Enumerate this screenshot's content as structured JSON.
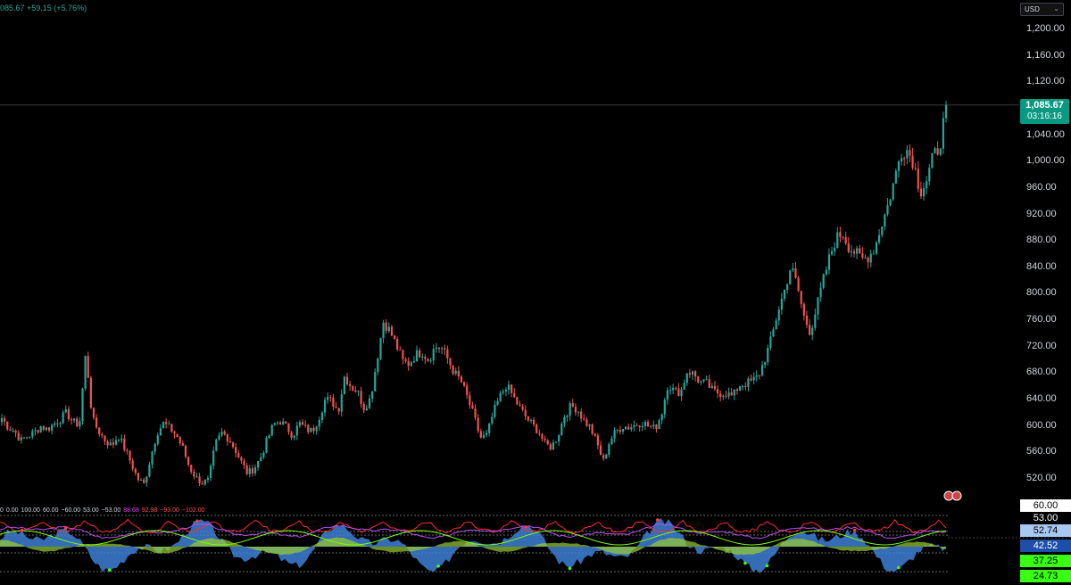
{
  "header": {
    "change_text": "085.67  +59.15 (+5.76%)",
    "currency": "USD"
  },
  "price_axis": {
    "ticks": [
      "1,200.00",
      "1,160.00",
      "1,120.00",
      "1,040.00",
      "1,000.00",
      "960.00",
      "920.00",
      "880.00",
      "840.00",
      "800.00",
      "760.00",
      "720.00",
      "680.00",
      "640.00",
      "600.00",
      "560.00",
      "520.00"
    ],
    "current_price": "1,085.67",
    "countdown": "03:16:16"
  },
  "indicator": {
    "values": [
      "0",
      "0.00",
      "100.00",
      "60.00",
      "−60.00",
      "53.00",
      "−53.00",
      "88.68",
      "92.98",
      "−93.00",
      "−102.00"
    ],
    "axis_badges": [
      "60.00",
      "53.00",
      "52.74",
      "42.52",
      "37.25",
      "24.73"
    ]
  },
  "colors": {
    "up": "#26a69a",
    "down": "#ef5350",
    "price_badge": "#089981",
    "background": "#000000"
  },
  "chart_data": {
    "type": "candlestick",
    "ylim": [
      500,
      1220
    ],
    "last_close": 1085.67,
    "close_path": [
      612,
      598,
      592,
      578,
      585,
      590,
      600,
      595,
      603,
      610,
      620,
      606,
      602,
      712,
      610,
      592,
      578,
      570,
      586,
      566,
      544,
      520,
      512,
      552,
      590,
      604,
      596,
      586,
      566,
      538,
      522,
      514,
      518,
      572,
      590,
      582,
      566,
      546,
      528,
      536,
      552,
      578,
      602,
      608,
      598,
      586,
      604,
      596,
      592,
      612,
      640,
      638,
      622,
      676,
      660,
      652,
      628,
      642,
      700,
      758,
      744,
      722,
      698,
      694,
      708,
      712,
      700,
      720,
      718,
      700,
      680,
      668,
      642,
      614,
      582,
      586,
      620,
      644,
      662,
      646,
      628,
      614,
      602,
      592,
      572,
      568,
      586,
      616,
      630,
      626,
      608,
      598,
      574,
      546,
      578,
      592,
      600,
      598,
      602,
      606,
      600,
      596,
      618,
      664,
      652,
      652,
      684,
      678,
      666,
      664,
      652,
      650,
      650,
      644,
      662,
      664,
      668,
      676,
      702,
      732,
      774,
      804,
      842,
      812,
      766,
      742,
      780,
      820,
      856,
      884,
      892,
      870,
      862,
      852,
      856,
      870,
      904,
      934,
      972,
      1014,
      1018,
      998,
      954,
      972,
      1008,
      1022,
      1085
    ]
  }
}
